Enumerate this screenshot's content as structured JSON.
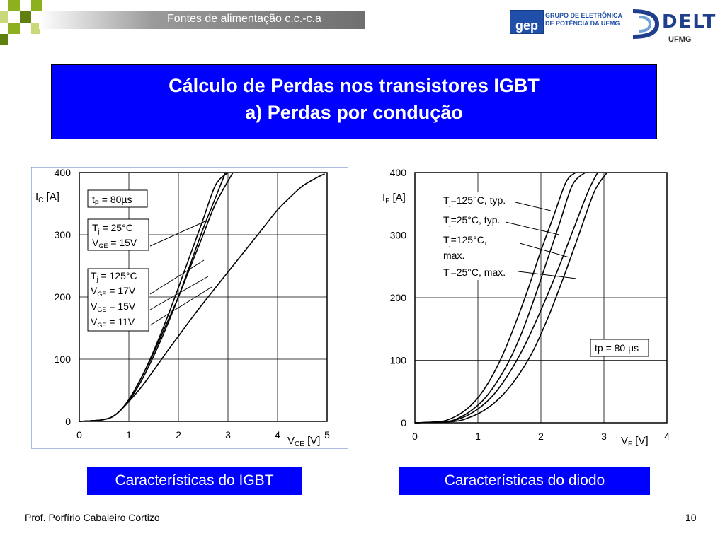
{
  "header": {
    "title": "Fontes de alimentação c.c.-c.a",
    "logo_gep_abbr": "gep",
    "logo_gep_line1": "GRUPO DE ELETRÔNICA",
    "logo_gep_line2": "DE POTÊNCIA DA UFMG",
    "logo_delt": "DELT",
    "logo_ufmg": "UFMG"
  },
  "slide": {
    "title_line1": "Cálculo de Perdas nos transistores IGBT",
    "title_line2": "a) Perdas por condução"
  },
  "captions": {
    "left": "Características do IGBT",
    "right": "Características do diodo"
  },
  "footer": {
    "author": "Prof. Porfírio Cabaleiro Cortizo",
    "page": "10"
  },
  "colors": {
    "title_bg": "#0000ff",
    "caption_bg": "#0000ff",
    "text_on_blue": "#ffffff",
    "accent_green": "#8db01e",
    "accent_darkgreen": "#5f7f0f"
  },
  "chart_data": [
    {
      "type": "line",
      "xlabel": "V_CE [V]",
      "ylabel": "I_C [A]",
      "xlim": [
        0,
        5
      ],
      "ylim": [
        0,
        400
      ],
      "xticks": [
        "0",
        "1",
        "2",
        "3",
        "4",
        "5"
      ],
      "yticks": [
        "0",
        "100",
        "200",
        "300",
        "400"
      ],
      "grid": true,
      "annotations": [
        {
          "id": "tp",
          "lines": [
            "t_P = 80µs"
          ]
        },
        {
          "id": "tj25",
          "lines": [
            "T_j = 25°C",
            "V_GE = 15V"
          ]
        },
        {
          "id": "tj125",
          "lines": [
            "T_j = 125°C",
            "V_GE = 17V",
            "V_GE = 15V",
            "V_GE = 11V"
          ]
        }
      ],
      "series": [
        {
          "x": [
            0,
            0.5,
            0.75,
            1.0,
            1.25,
            1.5,
            1.75,
            2.0,
            2.25,
            2.5,
            2.75,
            3.1
          ],
          "y": [
            0,
            3,
            12,
            35,
            70,
            110,
            155,
            200,
            250,
            300,
            350,
            400
          ]
        },
        {
          "x": [
            0,
            0.5,
            0.75,
            1.0,
            1.25,
            1.5,
            1.75,
            2.0,
            2.25,
            2.5,
            2.75,
            3.0
          ],
          "y": [
            0,
            3,
            12,
            35,
            70,
            113,
            162,
            215,
            270,
            325,
            380,
            400
          ]
        },
        {
          "x": [
            0,
            0.5,
            0.75,
            1.0,
            1.25,
            1.5,
            1.75,
            2.0,
            2.25,
            2.5,
            2.7,
            2.95
          ],
          "y": [
            0,
            3,
            12,
            33,
            65,
            105,
            150,
            200,
            255,
            310,
            350,
            400
          ]
        },
        {
          "x": [
            0,
            0.5,
            0.75,
            1.0,
            1.25,
            1.5,
            1.75,
            2.0,
            2.25,
            2.5,
            2.75,
            3.0,
            3.25,
            3.5,
            3.75,
            4.0,
            4.25,
            4.5,
            4.75,
            4.95
          ],
          "y": [
            0,
            3,
            12,
            32,
            55,
            82,
            110,
            137,
            164,
            190,
            215,
            240,
            265,
            290,
            315,
            340,
            360,
            378,
            390,
            398
          ]
        }
      ]
    },
    {
      "type": "line",
      "xlabel": "V_F [V]",
      "ylabel": "I_F [A]",
      "xlim": [
        0,
        4
      ],
      "ylim": [
        0,
        400
      ],
      "xticks": [
        "0",
        "1",
        "2",
        "3",
        "4"
      ],
      "yticks": [
        "0",
        "100",
        "200",
        "300",
        "400"
      ],
      "grid": true,
      "annotations": [
        {
          "id": "s1",
          "lines": [
            "T_j=125°C, typ."
          ]
        },
        {
          "id": "s2",
          "lines": [
            "T_j=25°C, typ."
          ]
        },
        {
          "id": "s3",
          "lines": [
            "T_j=125°C,",
            "max."
          ]
        },
        {
          "id": "s4",
          "lines": [
            "T_j=25°C, max."
          ]
        },
        {
          "id": "tp",
          "lines": [
            "tp = 80 µs"
          ]
        }
      ],
      "series": [
        {
          "name": "T_j=125°C, typ.",
          "x": [
            0,
            0.4,
            0.6,
            0.8,
            1.0,
            1.2,
            1.4,
            1.6,
            1.8,
            2.0,
            2.2,
            2.4,
            2.55
          ],
          "y": [
            0,
            2,
            8,
            20,
            40,
            70,
            110,
            160,
            215,
            275,
            330,
            385,
            400
          ]
        },
        {
          "name": "T_j=25°C, typ.",
          "x": [
            0,
            0.5,
            0.7,
            0.9,
            1.1,
            1.3,
            1.5,
            1.7,
            1.9,
            2.1,
            2.3,
            2.5,
            2.7
          ],
          "y": [
            0,
            2,
            8,
            20,
            38,
            65,
            100,
            145,
            200,
            260,
            320,
            380,
            400
          ]
        },
        {
          "name": "T_j=125°C, max.",
          "x": [
            0,
            0.5,
            0.75,
            1.0,
            1.25,
            1.5,
            1.75,
            2.0,
            2.25,
            2.5,
            2.75,
            2.9
          ],
          "y": [
            0,
            2,
            8,
            22,
            45,
            80,
            125,
            180,
            240,
            305,
            370,
            400
          ]
        },
        {
          "name": "T_j=25°C, max.",
          "x": [
            0,
            0.6,
            0.85,
            1.1,
            1.35,
            1.6,
            1.85,
            2.1,
            2.35,
            2.6,
            2.85,
            3.05
          ],
          "y": [
            0,
            2,
            8,
            20,
            40,
            70,
            110,
            165,
            230,
            300,
            370,
            400
          ]
        }
      ]
    }
  ]
}
